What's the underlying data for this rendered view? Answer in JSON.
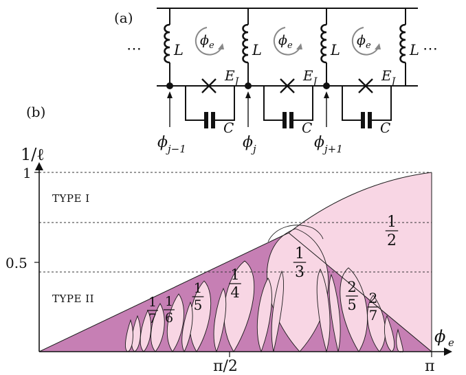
{
  "panel_a": {
    "label": "(a)",
    "inductor_label": "L",
    "flux_label": "ϕ",
    "flux_sub": "e",
    "junction_label": "E",
    "junction_sub": "J",
    "capacitor_label": "C",
    "dots_left": "⋯",
    "dots_right": "⋯",
    "node_labels": [
      {
        "base": "ϕ",
        "sub": "j−1"
      },
      {
        "base": "ϕ",
        "sub": "j"
      },
      {
        "base": "ϕ",
        "sub": "j+1"
      }
    ]
  },
  "panel_b": {
    "label": "(b)",
    "y_axis_label": "1/ℓ",
    "x_axis_label": "ϕ",
    "x_axis_sub": "e",
    "y_ticks": [
      "1",
      "0.5"
    ],
    "x_ticks": [
      "π/2",
      "π"
    ],
    "region_type_1": "TYPE I",
    "region_type_2": "TYPE II",
    "fractions": [
      {
        "num": "1",
        "den": "2"
      },
      {
        "num": "1",
        "den": "3"
      },
      {
        "num": "1",
        "den": "4"
      },
      {
        "num": "1",
        "den": "5"
      },
      {
        "num": "1",
        "den": "6"
      },
      {
        "num": "1",
        "den": "7"
      },
      {
        "num": "2",
        "den": "5"
      },
      {
        "num": "2",
        "den": "7"
      }
    ],
    "colors": {
      "light_region": "#f8d6e4",
      "dark_region": "#c67fb4",
      "outline": "#1a1a1a"
    }
  }
}
